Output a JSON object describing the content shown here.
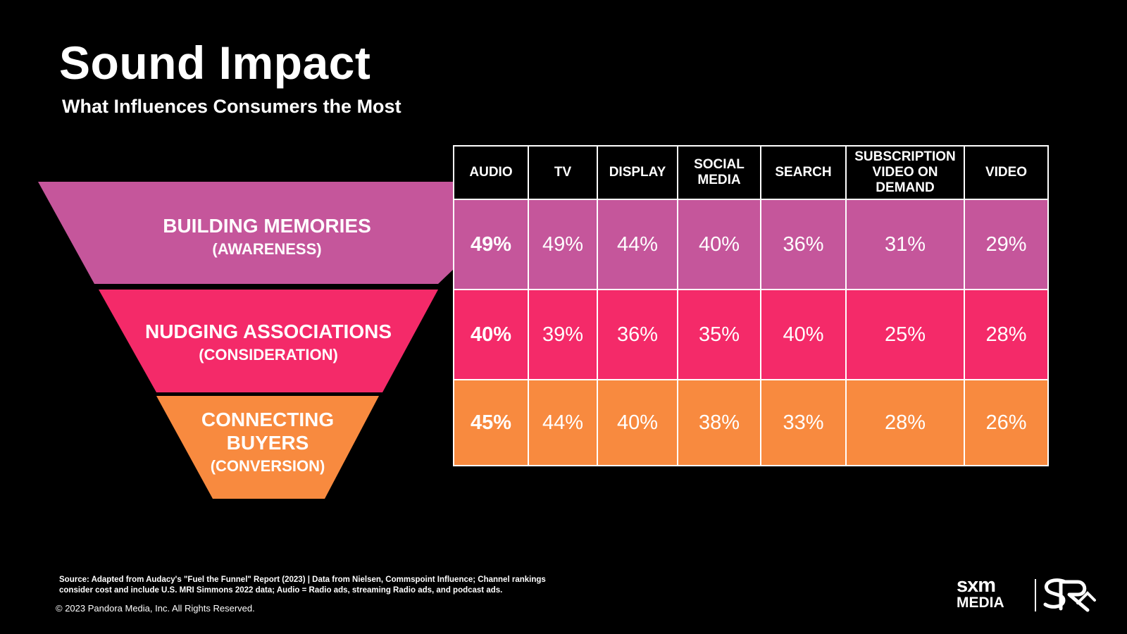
{
  "title": "Sound Impact",
  "subtitle": "What Influences Consumers the Most",
  "colors": {
    "awareness": "#c5569b",
    "consideration": "#f42a69",
    "conversion": "#f88a3f",
    "background": "#000000"
  },
  "funnel": [
    {
      "line1": "BUILDING MEMORIES",
      "line2": "(AWARENESS)"
    },
    {
      "line1": "NUDGING ASSOCIATIONS",
      "line2": "(CONSIDERATION)"
    },
    {
      "line1": "CONNECTING BUYERS",
      "line2": "(CONVERSION)"
    }
  ],
  "chart_data": {
    "type": "table",
    "columns": [
      "AUDIO",
      "TV",
      "DISPLAY",
      "SOCIAL MEDIA",
      "SEARCH",
      "SUBSCRIPTION VIDEO ON DEMAND",
      "VIDEO"
    ],
    "rows": [
      {
        "stage": "BUILDING MEMORIES (AWARENESS)",
        "values": [
          "49%",
          "49%",
          "44%",
          "40%",
          "36%",
          "31%",
          "29%"
        ]
      },
      {
        "stage": "NUDGING ASSOCIATIONS (CONSIDERATION)",
        "values": [
          "40%",
          "39%",
          "36%",
          "35%",
          "40%",
          "25%",
          "28%"
        ]
      },
      {
        "stage": "CONNECTING BUYERS (CONVERSION)",
        "values": [
          "45%",
          "44%",
          "40%",
          "38%",
          "33%",
          "28%",
          "26%"
        ]
      }
    ]
  },
  "footnote": "Source: Adapted from Audacy's \"Fuel the Funnel\" Report (2023) | Data from Nielsen, Commspoint Influence; Channel rankings consider cost and include U.S. MRI Simmons 2022 data; Audio = Radio ads, streaming Radio ads, and podcast ads.",
  "copyright": "© 2023 Pandora Media, Inc. All Rights Reserved.",
  "logo": {
    "line1": "sxm",
    "line2": "MEDIA",
    "mark": "SR"
  }
}
